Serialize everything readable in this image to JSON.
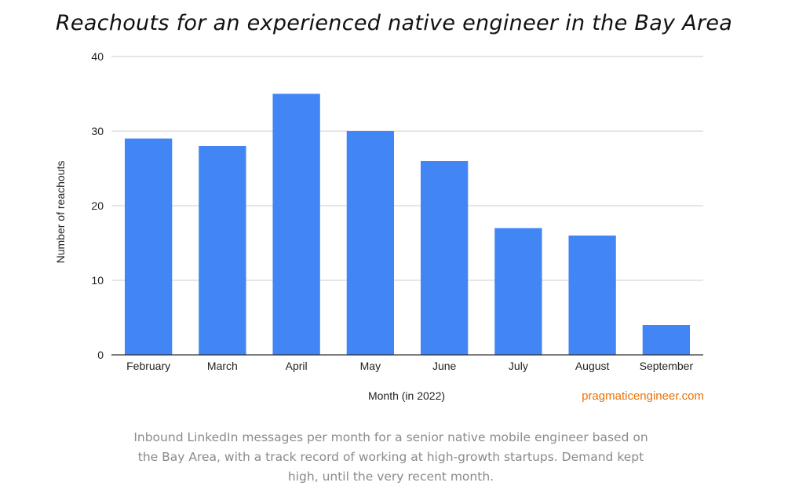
{
  "title": "Reachouts for an experienced native engineer in the Bay Area",
  "watermark": "pragmaticengineer.com",
  "caption": "Inbound LinkedIn messages per month for a senior native mobile engineer based on the Bay Area, with a track record of working at high-growth startups. Demand kept high, until the very recent month.",
  "colors": {
    "bar": "#4285f4",
    "gridline": "#cccccc",
    "axis": "#333333",
    "watermark": "#e8710a"
  },
  "chart_data": {
    "type": "bar",
    "title": "Reachouts for an experienced native engineer in the Bay Area",
    "xlabel": "Month (in 2022)",
    "ylabel": "Number of reachouts",
    "categories": [
      "February",
      "March",
      "April",
      "May",
      "June",
      "July",
      "August",
      "September"
    ],
    "values": [
      29,
      28,
      35,
      30,
      26,
      17,
      16,
      4
    ],
    "ylim": [
      0,
      40
    ],
    "yticks": [
      0,
      10,
      20,
      30,
      40
    ],
    "grid": true,
    "legend": "none"
  }
}
